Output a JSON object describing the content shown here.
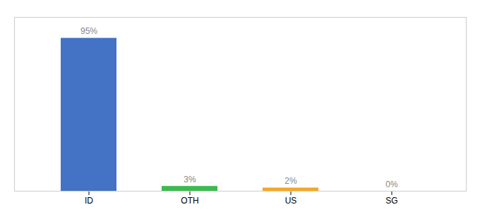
{
  "chart_data": {
    "type": "bar",
    "categories": [
      "ID",
      "OTH",
      "US",
      "SG"
    ],
    "values": [
      95,
      3,
      2,
      0
    ],
    "value_labels": [
      "95%",
      "3%",
      "2%",
      "0%"
    ],
    "colors": [
      "#4472c4",
      "#3dba4e",
      "#f5a623",
      "#4472c4"
    ],
    "ylim": [
      0,
      108
    ],
    "data_labels": true,
    "tick_labels": "x",
    "grid": false
  }
}
